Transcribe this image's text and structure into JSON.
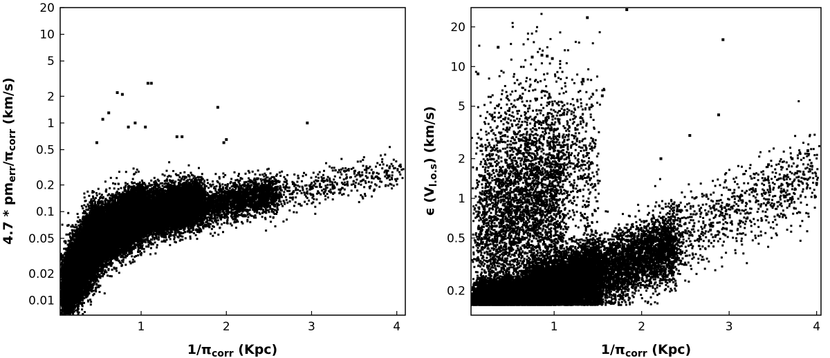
{
  "chart_data": [
    {
      "type": "scatter",
      "xlabel": {
        "main": "1/π",
        "sub": "corr",
        "unit": " (Kpc)"
      },
      "ylabel": {
        "p1": "4.7 * pm",
        "s1": "err",
        "p2": "/π",
        "s2": "corr",
        "unit": " (km/s)"
      },
      "xlim": [
        0.05,
        4.1
      ],
      "ylim": [
        0.0068,
        20
      ],
      "yscale": "log",
      "x_ticks": [
        1,
        2,
        3,
        4
      ],
      "x_tick_labels": [
        "1",
        "2",
        "3",
        "4"
      ],
      "y_ticks": [
        0.01,
        0.02,
        0.05,
        0.1,
        0.2,
        0.5,
        1,
        2,
        5,
        10,
        20
      ],
      "y_tick_labels": [
        "0.01",
        "0.02",
        "0.05",
        "0.1",
        "0.2",
        "0.5",
        "1",
        "2",
        "5",
        "10",
        "20"
      ],
      "grid": false,
      "marker_color": "#000000",
      "outliers": [
        [
          0.72,
          2.2
        ],
        [
          0.78,
          2.1
        ],
        [
          1.08,
          2.8
        ],
        [
          1.12,
          2.8
        ],
        [
          0.62,
          1.3
        ],
        [
          0.55,
          1.1
        ],
        [
          0.93,
          1.0
        ],
        [
          1.05,
          0.9
        ],
        [
          1.9,
          1.5
        ],
        [
          2.95,
          1.0
        ],
        [
          1.42,
          0.7
        ],
        [
          1.48,
          0.7
        ],
        [
          0.85,
          0.9
        ],
        [
          0.48,
          0.6
        ],
        [
          2.0,
          0.65
        ],
        [
          1.97,
          0.6
        ]
      ],
      "point_clouds": [
        {
          "n": 7000,
          "x_range": [
            0.08,
            0.5
          ],
          "y_at_start": 0.012,
          "y_at_end": 0.055,
          "log_sigma": 0.2
        },
        {
          "n": 9000,
          "x_range": [
            0.4,
            1.0
          ],
          "y_at_start": 0.045,
          "y_at_end": 0.095,
          "log_sigma": 0.16
        },
        {
          "n": 8000,
          "x_range": [
            0.9,
            1.7
          ],
          "y_at_start": 0.085,
          "y_at_end": 0.13,
          "log_sigma": 0.13
        },
        {
          "n": 2200,
          "x_range": [
            1.6,
            2.6
          ],
          "y_at_start": 0.11,
          "y_at_end": 0.16,
          "log_sigma": 0.11
        },
        {
          "n": 450,
          "x_range": [
            2.5,
            4.05
          ],
          "y_at_start": 0.15,
          "y_at_end": 0.28,
          "log_sigma": 0.1
        }
      ]
    },
    {
      "type": "scatter",
      "xlabel": {
        "main": "1/π",
        "sub": "corr",
        "unit": " (Kpc)"
      },
      "ylabel": {
        "p1": "ϵ (V",
        "s1": "l.o.s",
        "p2": ")",
        "s2": "",
        "unit": " (km/s)"
      },
      "xlim": [
        0.05,
        4.05
      ],
      "ylim": [
        0.13,
        28
      ],
      "yscale": "log",
      "x_ticks": [
        1,
        2,
        3,
        4
      ],
      "x_tick_labels": [
        "1",
        "2",
        "3",
        "4"
      ],
      "y_ticks": [
        0.2,
        0.5,
        1,
        2,
        5,
        10,
        20
      ],
      "y_tick_labels": [
        "0.2",
        "0.5",
        "1",
        "2",
        "5",
        "10",
        "20"
      ],
      "grid": false,
      "marker_color": "#000000",
      "outliers": [
        [
          1.38,
          23.5
        ],
        [
          1.83,
          27
        ],
        [
          2.93,
          16
        ],
        [
          0.36,
          14
        ],
        [
          0.86,
          12.2
        ],
        [
          0.92,
          12.0
        ],
        [
          0.98,
          11.5
        ],
        [
          0.75,
          11.8
        ],
        [
          0.13,
          8.8
        ],
        [
          1.33,
          8.0
        ],
        [
          2.88,
          4.3
        ],
        [
          1.55,
          6.0
        ],
        [
          2.55,
          3.0
        ],
        [
          2.22,
          2.0
        ],
        [
          3.72,
          2.0
        ],
        [
          3.9,
          2.3
        ],
        [
          4.0,
          1.3
        ],
        [
          3.45,
          1.8
        ]
      ],
      "point_clouds": [
        {
          "n": 9000,
          "x_range": [
            0.1,
            0.8
          ],
          "y_at_start": 0.16,
          "y_at_end": 0.19,
          "log_sigma": 0.07
        },
        {
          "n": 8000,
          "x_range": [
            0.7,
            1.5
          ],
          "y_at_start": 0.18,
          "y_at_end": 0.26,
          "log_sigma": 0.12
        },
        {
          "n": 3500,
          "x_range": [
            1.4,
            2.4
          ],
          "y_at_start": 0.25,
          "y_at_end": 0.45,
          "log_sigma": 0.13
        },
        {
          "n": 900,
          "x_range": [
            2.2,
            4.0
          ],
          "y_at_start": 0.45,
          "y_at_end": 1.5,
          "log_sigma": 0.15
        },
        {
          "n": 3200,
          "x_range": [
            0.12,
            1.1
          ],
          "y_at_start": 0.5,
          "y_at_end": 1.0,
          "log_sigma": 0.4
        },
        {
          "n": 1200,
          "x_range": [
            0.3,
            1.5
          ],
          "y_at_start": 1.5,
          "y_at_end": 2.0,
          "log_sigma": 0.35
        }
      ]
    }
  ]
}
